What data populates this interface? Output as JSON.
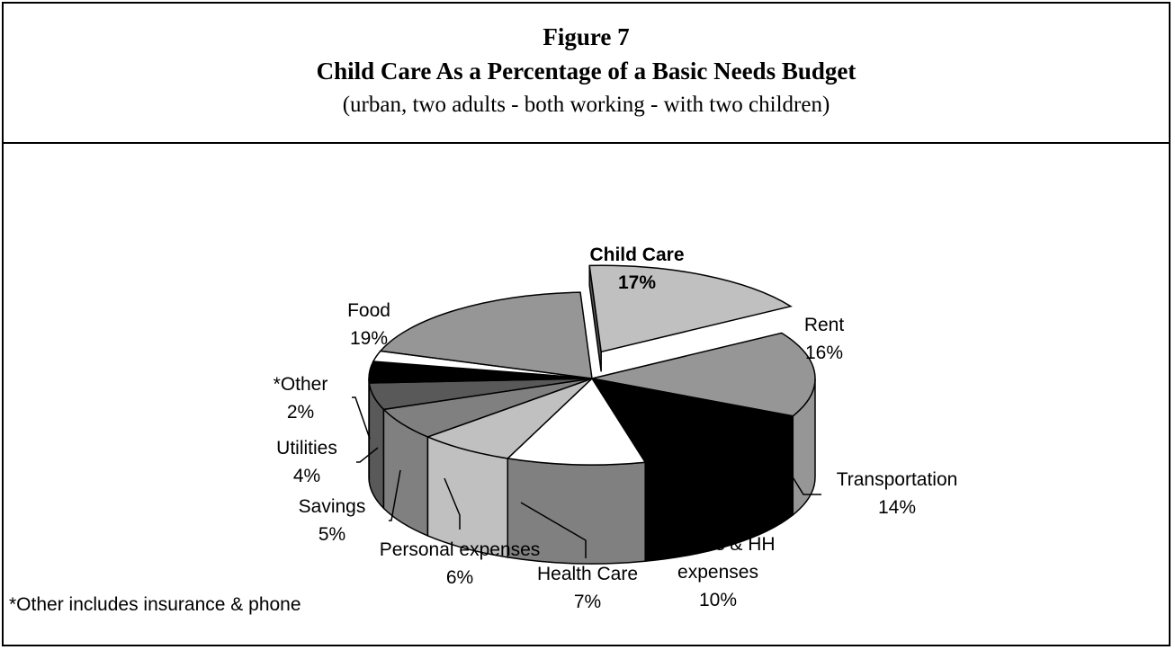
{
  "figure": {
    "label": "Figure 7",
    "title": "Child Care As a Percentage of a Basic Needs Budget",
    "subtitle": "(urban, two adults - both working - with two children)"
  },
  "footnote": "*Other includes insurance & phone",
  "colors": {
    "black": "#000000",
    "white": "#ffffff",
    "dark_gray": "#595959",
    "mid_gray": "#808080",
    "gray": "#969696",
    "light_gray": "#c0c0c0"
  },
  "chart_data": {
    "type": "pie",
    "style": "3d-exploded",
    "title": "Child Care As a Percentage of a Basic Needs Budget",
    "exploded_slice": "Child Care",
    "categories": [
      "Child Care",
      "Rent",
      "Transportation",
      "Clothes & HH expenses",
      "Health Care",
      "Personal expenses",
      "Savings",
      "Utilities",
      "*Other",
      "Food"
    ],
    "values": [
      17,
      16,
      14,
      10,
      7,
      6,
      5,
      4,
      2,
      19
    ],
    "slices": [
      {
        "name": "Child Care",
        "value": 17,
        "label_lines": [
          "Child Care",
          "17%"
        ],
        "bold": true,
        "color": "#c0c0c0"
      },
      {
        "name": "Rent",
        "value": 16,
        "label_lines": [
          "Rent",
          "16%"
        ],
        "bold": false,
        "color": "#969696"
      },
      {
        "name": "Transportation",
        "value": 14,
        "label_lines": [
          "Transportation",
          "14%"
        ],
        "bold": false,
        "color": "#000000"
      },
      {
        "name": "Clothes & HH expenses",
        "value": 10,
        "label_lines": [
          "Clothes & HH",
          "expenses",
          "10%"
        ],
        "bold": false,
        "color": "#ffffff"
      },
      {
        "name": "Health Care",
        "value": 7,
        "label_lines": [
          "Health Care",
          "7%"
        ],
        "bold": false,
        "color": "#c0c0c0"
      },
      {
        "name": "Personal expenses",
        "value": 6,
        "label_lines": [
          "Personal expenses",
          "6%"
        ],
        "bold": false,
        "color": "#808080"
      },
      {
        "name": "Savings",
        "value": 5,
        "label_lines": [
          "Savings",
          "5%"
        ],
        "bold": false,
        "color": "#595959"
      },
      {
        "name": "Utilities",
        "value": 4,
        "label_lines": [
          "Utilities",
          "4%"
        ],
        "bold": false,
        "color": "#000000"
      },
      {
        "name": "*Other",
        "value": 2,
        "label_lines": [
          "*Other",
          "2%"
        ],
        "bold": false,
        "color": "#ffffff"
      },
      {
        "name": "Food",
        "value": 19,
        "label_lines": [
          "Food",
          "19%"
        ],
        "bold": false,
        "color": "#969696"
      }
    ]
  }
}
